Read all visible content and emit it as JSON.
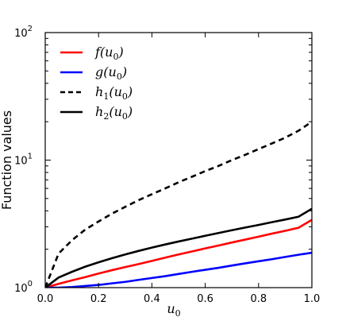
{
  "chart_data": {
    "type": "line",
    "xlabel": "u",
    "xlabel_sub": "0",
    "ylabel": "Function values",
    "xlim": [
      0.0,
      1.0
    ],
    "ylim": [
      1,
      100
    ],
    "yscale": "log",
    "grid": false,
    "legend_placement": "top-left",
    "x_ticks": [
      "0.0",
      "0.2",
      "0.4",
      "0.6",
      "0.8",
      "1.0"
    ],
    "y_ticks": [
      {
        "base": "10",
        "exp": "0"
      },
      {
        "base": "10",
        "exp": "1"
      },
      {
        "base": "10",
        "exp": "2"
      }
    ],
    "x": [
      0.0,
      0.05,
      0.1,
      0.15,
      0.2,
      0.25,
      0.3,
      0.35,
      0.4,
      0.45,
      0.5,
      0.55,
      0.6,
      0.65,
      0.7,
      0.75,
      0.8,
      0.85,
      0.9,
      0.95,
      1.0
    ],
    "series": [
      {
        "name": "f(u_0)",
        "legend": {
          "fn": "f",
          "arg": "u",
          "sub": "0",
          "fnsub": ""
        },
        "color": "#ff0000",
        "dash": "",
        "values": [
          1.0,
          1.07,
          1.14,
          1.21,
          1.29,
          1.37,
          1.45,
          1.53,
          1.62,
          1.72,
          1.82,
          1.92,
          2.03,
          2.14,
          2.26,
          2.38,
          2.51,
          2.65,
          2.79,
          2.95,
          3.4
        ]
      },
      {
        "name": "g(u_0)",
        "legend": {
          "fn": "g",
          "arg": "u",
          "sub": "0",
          "fnsub": ""
        },
        "color": "#0000ff",
        "dash": "",
        "values": [
          1.0,
          1.0,
          1.01,
          1.03,
          1.05,
          1.08,
          1.11,
          1.15,
          1.19,
          1.23,
          1.28,
          1.33,
          1.38,
          1.43,
          1.49,
          1.55,
          1.61,
          1.67,
          1.74,
          1.81,
          1.88
        ]
      },
      {
        "name": "h_1(u_0)",
        "legend": {
          "fn": "h",
          "arg": "u",
          "sub": "0",
          "fnsub": "1"
        },
        "color": "#000000",
        "dash": "7,5",
        "values": [
          1.0,
          1.85,
          2.35,
          2.85,
          3.3,
          3.8,
          4.3,
          4.85,
          5.4,
          6.0,
          6.7,
          7.4,
          8.2,
          9.0,
          10.0,
          11.0,
          12.2,
          13.5,
          15.0,
          17.0,
          20.0
        ]
      },
      {
        "name": "h_2(u_0)",
        "legend": {
          "fn": "h",
          "arg": "u",
          "sub": "0",
          "fnsub": "2"
        },
        "color": "#000000",
        "dash": "",
        "values": [
          1.0,
          1.2,
          1.33,
          1.46,
          1.58,
          1.7,
          1.82,
          1.94,
          2.06,
          2.18,
          2.3,
          2.42,
          2.55,
          2.68,
          2.82,
          2.96,
          3.1,
          3.26,
          3.42,
          3.6,
          4.15
        ]
      }
    ]
  }
}
